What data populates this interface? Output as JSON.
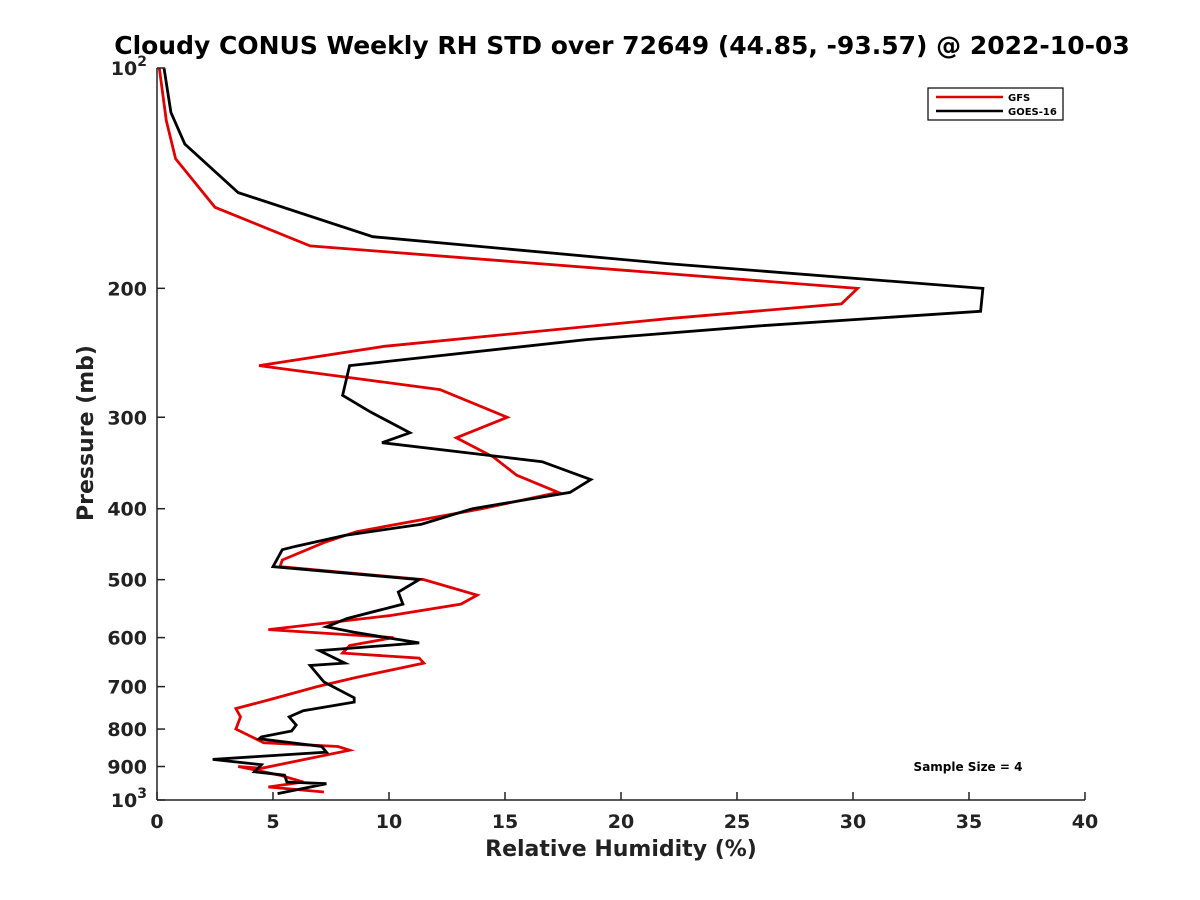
{
  "chart_data": {
    "type": "line",
    "title": "Cloudy CONUS Weekly RH STD over 72649 (44.85, -93.57) @ 2022-10-03",
    "xlabel": "Relative Humidity (%)",
    "ylabel": "Pressure (mb)",
    "xlim": [
      0,
      40
    ],
    "ylim": [
      100,
      1000
    ],
    "y_scale": "log",
    "y_reversed": true,
    "x_ticks": [
      0,
      5,
      10,
      15,
      20,
      25,
      30,
      35,
      40
    ],
    "y_ticks": [
      {
        "value": 100,
        "base": "10",
        "exp": "2"
      },
      {
        "value": 200,
        "label": "200"
      },
      {
        "value": 300,
        "label": "300"
      },
      {
        "value": 400,
        "label": "400"
      },
      {
        "value": 500,
        "label": "500"
      },
      {
        "value": 600,
        "label": "600"
      },
      {
        "value": 700,
        "label": "700"
      },
      {
        "value": 800,
        "label": "800"
      },
      {
        "value": 900,
        "label": "900"
      },
      {
        "value": 1000,
        "base": "10",
        "exp": "3"
      }
    ],
    "grid": false,
    "legend_position": "top-right",
    "series": [
      {
        "name": "GFS",
        "color": "#e00000",
        "points": [
          [
            7.2,
            975
          ],
          [
            4.8,
            960
          ],
          [
            6.3,
            945
          ],
          [
            5.3,
            925
          ],
          [
            3.5,
            900
          ],
          [
            4.5,
            905
          ],
          [
            8.3,
            855
          ],
          [
            7.8,
            845
          ],
          [
            4.6,
            835
          ],
          [
            3.4,
            800
          ],
          [
            3.6,
            770
          ],
          [
            3.4,
            750
          ],
          [
            4.8,
            730
          ],
          [
            6.9,
            700
          ],
          [
            8.6,
            680
          ],
          [
            11.5,
            650
          ],
          [
            11.3,
            640
          ],
          [
            8.0,
            630
          ],
          [
            8.3,
            615
          ],
          [
            10.2,
            600
          ],
          [
            4.8,
            585
          ],
          [
            10.0,
            560
          ],
          [
            13.1,
            540
          ],
          [
            13.8,
            525
          ],
          [
            11.5,
            500
          ],
          [
            5.3,
            480
          ],
          [
            5.4,
            470
          ],
          [
            7.2,
            445
          ],
          [
            8.6,
            430
          ],
          [
            14.0,
            400
          ],
          [
            17.3,
            380
          ],
          [
            15.5,
            360
          ],
          [
            14.5,
            340
          ],
          [
            12.9,
            320
          ],
          [
            15.1,
            300
          ],
          [
            12.2,
            275
          ],
          [
            4.4,
            255
          ],
          [
            9.8,
            240
          ],
          [
            22.0,
            220
          ],
          [
            29.5,
            210
          ],
          [
            30.2,
            200
          ],
          [
            6.6,
            175
          ],
          [
            2.5,
            155
          ],
          [
            0.8,
            133
          ],
          [
            0.4,
            118
          ],
          [
            0.1,
            100
          ]
        ]
      },
      {
        "name": "GOES-16",
        "color": "#000000",
        "points": [
          [
            5.2,
            980
          ],
          [
            7.3,
            950
          ],
          [
            5.6,
            945
          ],
          [
            5.5,
            925
          ],
          [
            4.2,
            915
          ],
          [
            4.5,
            895
          ],
          [
            2.4,
            880
          ],
          [
            7.3,
            860
          ],
          [
            7.1,
            845
          ],
          [
            4.4,
            825
          ],
          [
            4.5,
            820
          ],
          [
            5.8,
            805
          ],
          [
            6.0,
            790
          ],
          [
            5.7,
            770
          ],
          [
            6.3,
            755
          ],
          [
            8.5,
            735
          ],
          [
            8.5,
            725
          ],
          [
            7.2,
            690
          ],
          [
            6.6,
            655
          ],
          [
            8.1,
            650
          ],
          [
            7.0,
            625
          ],
          [
            11.3,
            610
          ],
          [
            8.5,
            590
          ],
          [
            7.3,
            580
          ],
          [
            8.2,
            565
          ],
          [
            10.6,
            540
          ],
          [
            10.4,
            520
          ],
          [
            11.3,
            500
          ],
          [
            5.0,
            480
          ],
          [
            5.4,
            455
          ],
          [
            6.0,
            450
          ],
          [
            8.1,
            435
          ],
          [
            11.4,
            420
          ],
          [
            13.6,
            400
          ],
          [
            17.8,
            380
          ],
          [
            18.7,
            365
          ],
          [
            16.6,
            345
          ],
          [
            9.7,
            325
          ],
          [
            10.9,
            315
          ],
          [
            9.2,
            295
          ],
          [
            8.0,
            280
          ],
          [
            8.3,
            255
          ],
          [
            18.5,
            235
          ],
          [
            26.0,
            225
          ],
          [
            35.5,
            215
          ],
          [
            35.6,
            200
          ],
          [
            22.0,
            185
          ],
          [
            9.3,
            170
          ],
          [
            3.5,
            148
          ],
          [
            1.2,
            127
          ],
          [
            0.6,
            115
          ],
          [
            0.3,
            100
          ]
        ]
      }
    ],
    "annotation": "Sample Size = 4"
  }
}
